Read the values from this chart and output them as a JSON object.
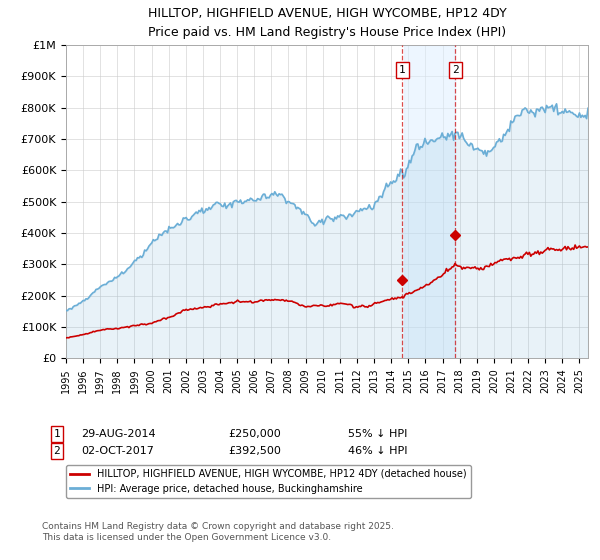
{
  "title_line1": "HILLTOP, HIGHFIELD AVENUE, HIGH WYCOMBE, HP12 4DY",
  "title_line2": "Price paid vs. HM Land Registry's House Price Index (HPI)",
  "ylabel_ticks": [
    "£0",
    "£100K",
    "£200K",
    "£300K",
    "£400K",
    "£500K",
    "£600K",
    "£700K",
    "£800K",
    "£900K",
    "£1M"
  ],
  "ytick_vals": [
    0,
    100000,
    200000,
    300000,
    400000,
    500000,
    600000,
    700000,
    800000,
    900000,
    1000000
  ],
  "ylim": [
    0,
    1000000
  ],
  "xlim_start": 1995,
  "xlim_end": 2025.5,
  "hpi_color": "#6baed6",
  "price_color": "#cc0000",
  "hpi_fill_color": "#ddeeff",
  "marker1_date": 2014.66,
  "marker2_date": 2017.75,
  "marker1_price": 250000,
  "marker2_price": 392500,
  "legend_line1": "HILLTOP, HIGHFIELD AVENUE, HIGH WYCOMBE, HP12 4DY (detached house)",
  "legend_line2": "HPI: Average price, detached house, Buckinghamshire",
  "footer": "Contains HM Land Registry data © Crown copyright and database right 2025.\nThis data is licensed under the Open Government Licence v3.0.",
  "background_color": "#ffffff",
  "grid_color": "#cccccc"
}
